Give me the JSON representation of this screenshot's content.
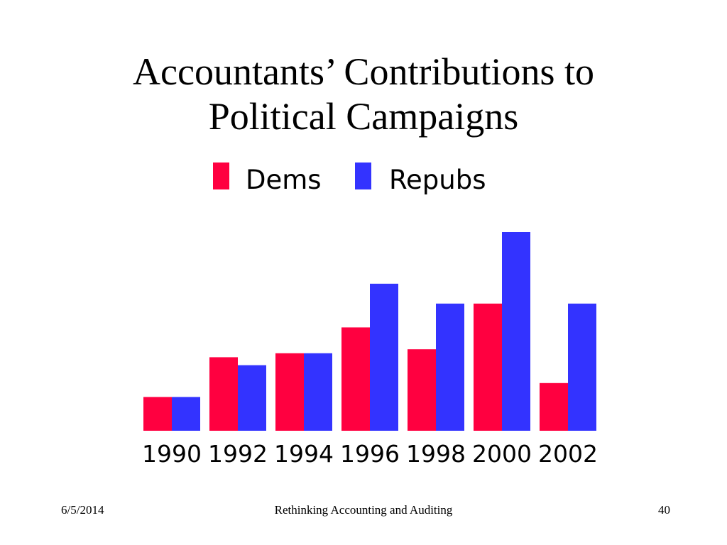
{
  "slide": {
    "title_line1": "Accountants’ Contributions to",
    "title_line2": "Political Campaigns"
  },
  "footer": {
    "date": "6/5/2014",
    "center": "Rethinking Accounting and Auditing",
    "page": "40"
  },
  "chart_data": {
    "type": "bar",
    "title": "",
    "xlabel": "",
    "ylabel": "",
    "grid": false,
    "legend_position": "top",
    "y_axis_shown": false,
    "categories": [
      "1990",
      "1992",
      "1994",
      "1996",
      "1998",
      "2000",
      "2002"
    ],
    "series": [
      {
        "name": "Dems",
        "color": "#ff0040",
        "values": [
          17,
          37,
          39,
          52,
          41,
          64,
          24
        ]
      },
      {
        "name": "Repubs",
        "color": "#3333ff",
        "values": [
          17,
          33,
          39,
          74,
          64,
          100,
          64
        ]
      }
    ],
    "ylim": [
      0,
      100
    ]
  }
}
